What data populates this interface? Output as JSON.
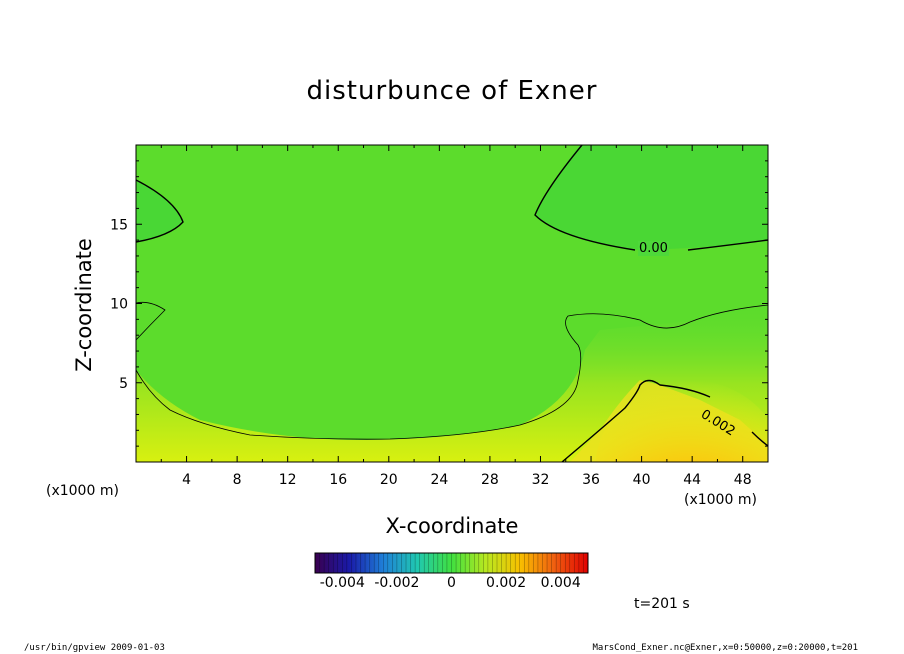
{
  "chart_data": {
    "type": "heatmap",
    "title": "disturbunce of Exner",
    "xlabel": "X-coordinate",
    "ylabel": "Z-coordinate",
    "x_unit": "(x1000 m)",
    "y_unit": "(x1000 m)",
    "xlim": [
      0,
      50
    ],
    "ylim": [
      0,
      20
    ],
    "x_ticks": [
      4,
      8,
      12,
      16,
      20,
      24,
      28,
      32,
      36,
      40,
      44,
      48
    ],
    "y_ticks": [
      5,
      10,
      15
    ],
    "colorbar": {
      "range": [
        -0.005,
        0.005
      ],
      "tick_values": [
        -0.004,
        -0.002,
        0,
        0.002,
        0.004
      ],
      "tick_labels": [
        "-0.004",
        "-0.002",
        "0",
        "0.002",
        "0.004"
      ],
      "colors": [
        "#3a0050",
        "#1a1aa8",
        "#1f7fd8",
        "#20c8b0",
        "#40e040",
        "#b8e820",
        "#f8c000",
        "#f06010",
        "#e00000"
      ]
    },
    "contour_labels": [
      {
        "text": "0.00",
        "x": 43,
        "z": 13.2
      },
      {
        "text": "0.002",
        "x": 47,
        "z": 2.8
      }
    ],
    "time_label": "t=201 s"
  },
  "footer": {
    "left": "/usr/bin/gpview   2009-01-03",
    "right": "MarsCond_Exner.nc@Exner,x=0:50000,z=0:20000,t=201"
  }
}
